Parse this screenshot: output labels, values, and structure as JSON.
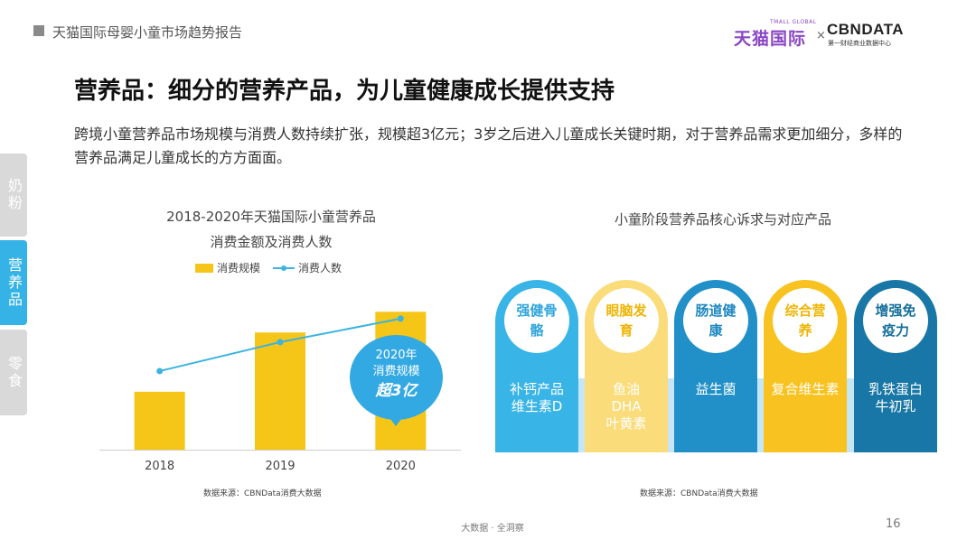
{
  "header": {
    "report_title": "天猫国际母婴小童市场趋势报告",
    "brand_tmall": "天猫国际",
    "brand_tmall_sub": "TMALL GLOBAL",
    "brand_x": "×",
    "brand_cbn": "CBNDATA",
    "brand_cbn_sub": "第一财经商业数据中心"
  },
  "title": "营养品：细分的营养产品，为儿童健康成长提供支持",
  "intro": "跨境小童营养品市场规模与消费人数持续扩张，规模超3亿元；3岁之后进入儿童成长关键时期，对于营养品需求更加细分，多样的营养品满足儿童成长的方方面面。",
  "side_tabs": [
    "奶粉",
    "营养品",
    "零食"
  ],
  "chart_data": {
    "type": "bar",
    "title": "2018-2020年天猫国际小童营养品消费金额及消费人数",
    "title_line1": "2018-2020年天猫国际小童营养品",
    "title_line2": "消费金额及消费人数",
    "categories": [
      "2018",
      "2019",
      "2020"
    ],
    "series": [
      {
        "name": "消费规模",
        "kind": "bar",
        "color": "#f5c518",
        "values": [
          0.42,
          0.85,
          1.0
        ]
      },
      {
        "name": "消费人数",
        "kind": "line",
        "color": "#3db3e0",
        "values": [
          0.57,
          0.78,
          0.95
        ]
      }
    ],
    "ylim": [
      0,
      1.1
    ],
    "grid": false,
    "legend_position": "top",
    "annotation": {
      "line1": "2020年",
      "line2": "消费规模",
      "line3": "超3亿"
    }
  },
  "needs": {
    "title": "小童阶段营养品核心诉求与对应产品",
    "items": [
      {
        "need": "强健骨骼",
        "products": "补钙产品\n维生素D",
        "color": "#39b4e6",
        "text_color": "#2fa6dc"
      },
      {
        "need": "眼脑发育",
        "products": "鱼油\nDHA\n叶黄素",
        "color": "#fbdc7a",
        "text_color": "#f0b400"
      },
      {
        "need": "肠道健康",
        "products": "益生菌",
        "color": "#2190c8",
        "text_color": "#1e88c0"
      },
      {
        "need": "综合营养",
        "products": "复合维生素",
        "color": "#f8c320",
        "text_color": "#f0b400"
      },
      {
        "need": "增强免疫力",
        "products": "乳铁蛋白\n牛初乳",
        "color": "#1877a6",
        "text_color": "#156f9c"
      }
    ]
  },
  "source_left": "数据来源：CBNData消费大数据",
  "source_right": "数据来源：CBNData消费大数据",
  "footer": {
    "center": "大数据 · 全洞察",
    "page": "16"
  }
}
